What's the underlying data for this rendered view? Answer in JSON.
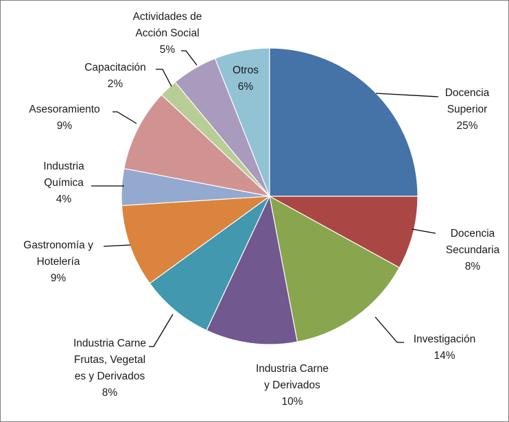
{
  "chart_data": {
    "type": "pie",
    "title": "",
    "legend": "none",
    "slices": [
      {
        "label": [
          "Docencia",
          "Superior"
        ],
        "percent_label": "25%",
        "value": 25,
        "color": "#4572a7"
      },
      {
        "label": [
          "Docencia",
          "Secundaria"
        ],
        "percent_label": "8%",
        "value": 8,
        "color": "#aa4643"
      },
      {
        "label": [
          "Investigación"
        ],
        "percent_label": "14%",
        "value": 14,
        "color": "#89a54e"
      },
      {
        "label": [
          "Industria Carne",
          "y Derivados"
        ],
        "percent_label": "10%",
        "value": 10,
        "color": "#71588f"
      },
      {
        "label": [
          "Industria Carne",
          "Frutas, Vegetal",
          "es y Derivados"
        ],
        "percent_label": "8%",
        "value": 8,
        "color": "#4198af"
      },
      {
        "label": [
          "Gastronomía y",
          "Hotelería"
        ],
        "percent_label": "9%",
        "value": 9,
        "color": "#db843d"
      },
      {
        "label": [
          "Industria",
          "Química"
        ],
        "percent_label": "4%",
        "value": 4,
        "color": "#93a9cf"
      },
      {
        "label": [
          "Asesoramiento"
        ],
        "percent_label": "9%",
        "value": 9,
        "color": "#d19392"
      },
      {
        "label": [
          "Capacitación"
        ],
        "percent_label": "2%",
        "value": 2,
        "color": "#b9cd96"
      },
      {
        "label": [
          "Actividades de",
          "Acción Social"
        ],
        "percent_label": "5%",
        "value": 5,
        "color": "#a99bbd"
      },
      {
        "label": [
          "Otros"
        ],
        "percent_label": "6%",
        "value": 6,
        "color": "#92c3d5"
      }
    ]
  }
}
